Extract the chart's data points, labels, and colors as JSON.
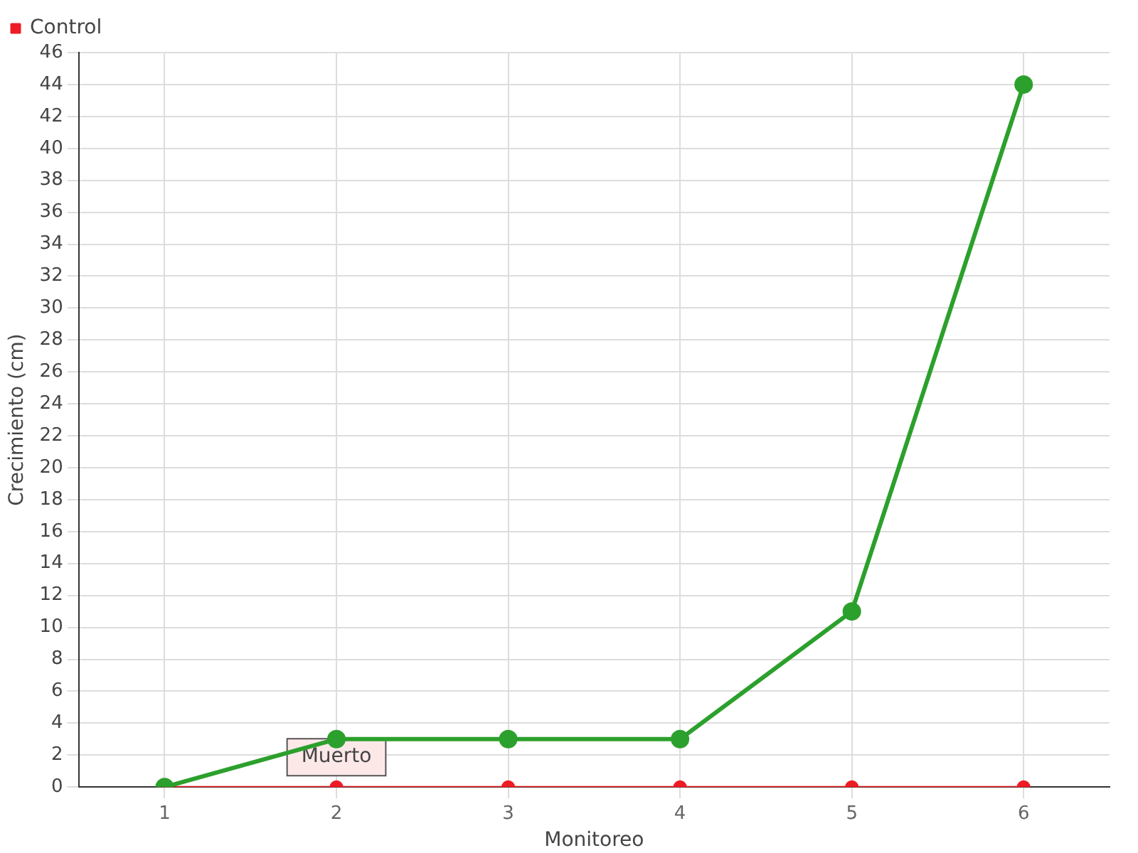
{
  "chart_data": {
    "type": "line",
    "xlabel": "Monitoreo",
    "ylabel": "Crecimiento (cm)",
    "categories": [
      "1",
      "2",
      "3",
      "4",
      "5",
      "6"
    ],
    "series": [
      {
        "color": "#2ca02c",
        "values": [
          0,
          3,
          3,
          3,
          11,
          44
        ]
      },
      {
        "name": "Control",
        "color": "#ee1c25",
        "values": [
          0,
          0,
          0,
          0,
          0,
          0
        ]
      }
    ],
    "ylim": [
      0,
      46
    ],
    "yticks": [
      0,
      2,
      4,
      6,
      8,
      10,
      12,
      14,
      16,
      18,
      20,
      22,
      24,
      26,
      28,
      30,
      32,
      34,
      36,
      38,
      40,
      42,
      44,
      46
    ],
    "grid": true,
    "legend": "top left",
    "marker": "circle",
    "line_style": "solid",
    "annotations": [
      {
        "text": "Muerto",
        "x": "2",
        "y": 0
      }
    ]
  }
}
